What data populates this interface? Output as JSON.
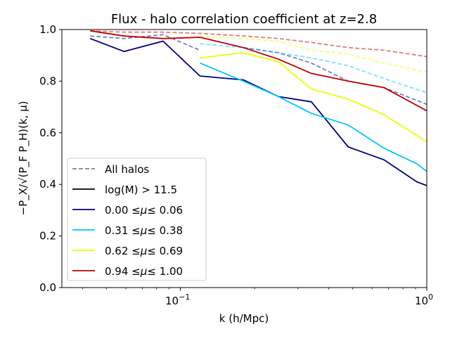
{
  "chart_data": {
    "type": "line",
    "title": "Flux - halo correlation coefficient at z=2.8",
    "xlabel": "k (h/Mpc)",
    "ylabel": "−P_X/√(P_F P_H)(k, μ)",
    "xscale": "log",
    "xlim": [
      0.033,
      1.0
    ],
    "ylim": [
      0.0,
      1.0
    ],
    "grid": false,
    "legend_position": "lower-left",
    "x_ticks": [
      {
        "value": 0.1,
        "base": "10",
        "exp": "−1"
      },
      {
        "value": 1.0,
        "base": "10",
        "exp": "0"
      }
    ],
    "y_ticks": [
      {
        "value": 0.0,
        "label": "0.0"
      },
      {
        "value": 0.2,
        "label": "0.2"
      },
      {
        "value": 0.4,
        "label": "0.4"
      },
      {
        "value": 0.6,
        "label": "0.6"
      },
      {
        "value": 0.8,
        "label": "0.8"
      },
      {
        "value": 1.0,
        "label": "1.0"
      }
    ],
    "legend": [
      {
        "label": "All halos",
        "color": "#808080",
        "style": "dashed"
      },
      {
        "label": "log(M) > 11.5",
        "color": "#000000",
        "style": "solid"
      },
      {
        "label_prefix": "0.00",
        "label_suffix": "0.06",
        "mu_symbol": "μ",
        "leq": "≤",
        "color": "#00007f",
        "style": "solid"
      },
      {
        "label_prefix": "0.31",
        "label_suffix": "0.38",
        "mu_symbol": "μ",
        "leq": "≤",
        "color": "#00c4ff",
        "style": "solid"
      },
      {
        "label_prefix": "0.62",
        "label_suffix": "0.69",
        "mu_symbol": "μ",
        "leq": "≤",
        "color": "#e8ff00",
        "style": "solid"
      },
      {
        "label_prefix": "0.94",
        "label_suffix": "1.00",
        "mu_symbol": "μ",
        "leq": "≤",
        "color": "#be0000",
        "style": "solid"
      }
    ],
    "series": [
      {
        "mu_bin": "0.00-0.06",
        "group": "All halos",
        "color": "#00007f",
        "style": "dashed",
        "x": [
          0.043,
          0.059,
          0.085,
          0.12
        ],
        "y": [
          0.975,
          0.965,
          0.98,
          0.92
        ]
      },
      {
        "mu_bin": "0.00-0.06",
        "group": "All halos",
        "color": "#00007f",
        "style": "dashed",
        "x": [
          0.18,
          0.25,
          0.34,
          0.48,
          0.67,
          1.0
        ],
        "y": [
          0.93,
          0.91,
          0.87,
          0.8,
          0.775,
          0.71
        ]
      },
      {
        "mu_bin": "0.31-0.38",
        "group": "All halos",
        "color": "#00c4ff",
        "style": "dashed",
        "x": [
          0.12,
          0.18,
          0.25,
          0.34,
          0.48,
          0.67,
          1.0
        ],
        "y": [
          0.945,
          0.93,
          0.91,
          0.89,
          0.86,
          0.81,
          0.755
        ]
      },
      {
        "mu_bin": "0.62-0.69",
        "group": "All halos",
        "color": "#e8ff00",
        "style": "dashed",
        "x": [
          0.12,
          0.18,
          0.25,
          0.34,
          0.48,
          0.67,
          1.0
        ],
        "y": [
          0.975,
          0.965,
          0.955,
          0.92,
          0.905,
          0.87,
          0.835
        ]
      },
      {
        "mu_bin": "0.94-1.00",
        "group": "All halos",
        "color": "#be0000",
        "style": "dashed",
        "x": [
          0.043,
          0.059,
          0.085,
          0.12,
          0.18,
          0.25,
          0.34,
          0.48,
          0.67,
          1.0
        ],
        "y": [
          0.995,
          0.99,
          0.99,
          0.985,
          0.975,
          0.965,
          0.95,
          0.93,
          0.92,
          0.895
        ]
      },
      {
        "mu_bin": "0.00-0.06",
        "group": "log(M) > 11.5",
        "color": "#00007f",
        "style": "solid",
        "x": [
          0.043,
          0.059,
          0.085,
          0.12,
          0.18,
          0.25,
          0.34,
          0.48,
          0.67,
          0.91,
          1.0
        ],
        "y": [
          0.965,
          0.915,
          0.955,
          0.82,
          0.805,
          0.74,
          0.72,
          0.545,
          0.495,
          0.41,
          0.395
        ]
      },
      {
        "mu_bin": "0.31-0.38",
        "group": "log(M) > 11.5",
        "color": "#00c4ff",
        "style": "solid",
        "x": [
          0.12,
          0.18,
          0.25,
          0.34,
          0.48,
          0.67,
          0.91,
          1.0
        ],
        "y": [
          0.87,
          0.8,
          0.74,
          0.675,
          0.63,
          0.54,
          0.48,
          0.45
        ]
      },
      {
        "mu_bin": "0.62-0.69",
        "group": "log(M) > 11.5",
        "color": "#e8ff00",
        "style": "solid",
        "x": [
          0.12,
          0.18,
          0.25,
          0.34,
          0.48,
          0.67,
          1.0
        ],
        "y": [
          0.89,
          0.91,
          0.875,
          0.77,
          0.73,
          0.67,
          0.565
        ]
      },
      {
        "mu_bin": "0.94-1.00",
        "group": "log(M) > 11.5",
        "color": "#be0000",
        "style": "solid",
        "x": [
          0.043,
          0.059,
          0.085,
          0.12,
          0.18,
          0.25,
          0.34,
          0.48,
          0.67,
          1.0
        ],
        "y": [
          0.995,
          0.975,
          0.965,
          0.97,
          0.93,
          0.885,
          0.83,
          0.8,
          0.775,
          0.685
        ]
      }
    ]
  }
}
